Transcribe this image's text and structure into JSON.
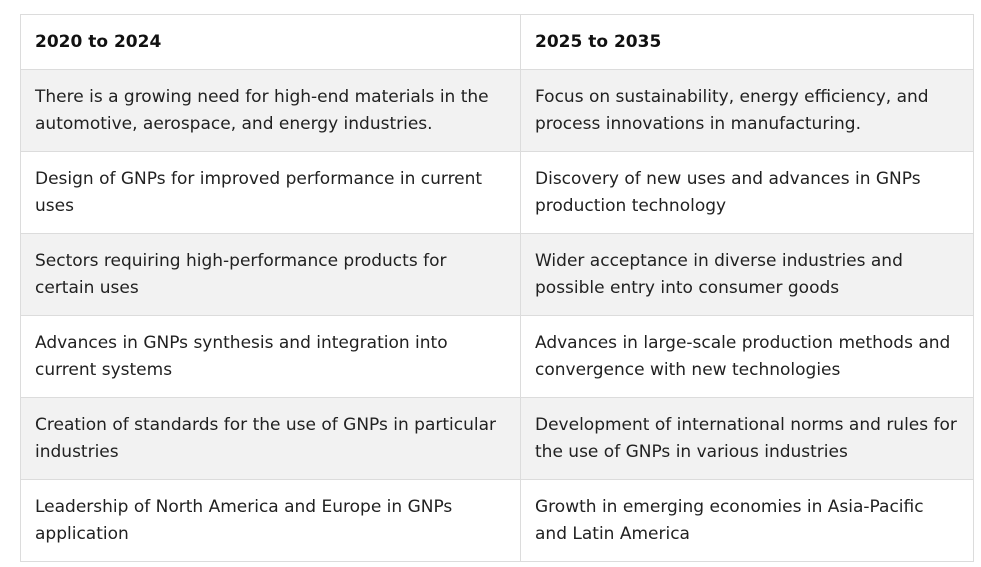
{
  "table": {
    "headers": [
      "2020 to 2024",
      "2025 to 2035"
    ],
    "rows": [
      [
        "There is a growing need for high-end materials in the automotive, aerospace, and energy industries.",
        "Focus on sustainability, energy efficiency, and process innovations in manufacturing."
      ],
      [
        "Design of GNPs for improved performance in current uses",
        "Discovery of new uses and advances in GNPs production technology"
      ],
      [
        "Sectors requiring high-performance products for certain uses",
        "Wider acceptance in diverse industries and possible entry into consumer goods"
      ],
      [
        "Advances in GNPs synthesis and integration into current systems",
        "Advances in large-scale production methods and convergence with new technologies"
      ],
      [
        "Creation of standards for the use of GNPs in particular industries",
        "Development of international norms and rules for the use of GNPs in various industries"
      ],
      [
        "Leadership of North America and Europe in GNPs application",
        "Growth in emerging economies in Asia-Pacific and Latin America"
      ]
    ]
  }
}
